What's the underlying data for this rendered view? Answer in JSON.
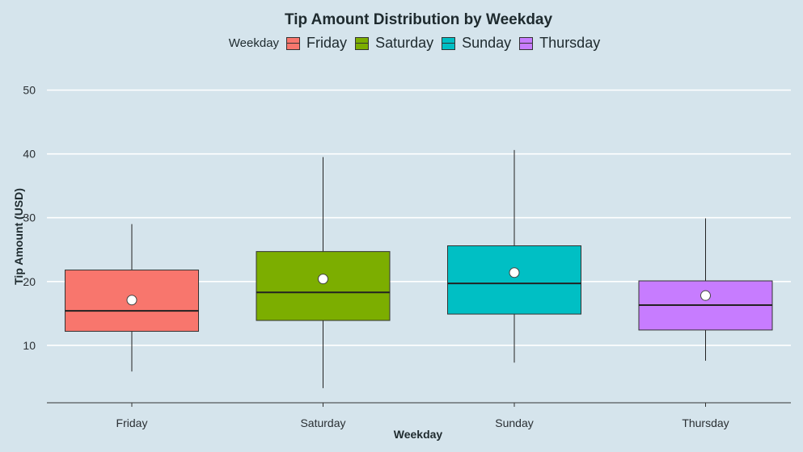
{
  "chart_data": {
    "type": "boxplot",
    "title": "Tip Amount Distribution by Weekday",
    "xlabel": "Weekday",
    "ylabel": "Tip Amount (USD)",
    "legend": {
      "title": "Weekday",
      "placement": "top",
      "entries": [
        "Friday",
        "Saturday",
        "Sunday",
        "Thursday"
      ]
    },
    "categories": [
      "Friday",
      "Saturday",
      "Sunday",
      "Thursday"
    ],
    "colors": [
      "#f8766d",
      "#7cae00",
      "#00bfc4",
      "#c77cff"
    ],
    "ylim": [
      1,
      54
    ],
    "yticks": [
      10,
      20,
      30,
      40,
      50
    ],
    "grid": true,
    "boxes": [
      {
        "category": "Friday",
        "whisker_low": 5.9,
        "q1": 12.2,
        "median": 15.4,
        "q3": 21.8,
        "whisker_high": 29.0,
        "mean": 17.1
      },
      {
        "category": "Saturday",
        "whisker_low": 3.3,
        "q1": 13.9,
        "median": 18.3,
        "q3": 24.7,
        "whisker_high": 39.5,
        "mean": 20.4
      },
      {
        "category": "Sunday",
        "whisker_low": 7.3,
        "q1": 14.9,
        "median": 19.7,
        "q3": 25.6,
        "whisker_high": 40.6,
        "mean": 21.4
      },
      {
        "category": "Thursday",
        "whisker_low": 7.6,
        "q1": 12.4,
        "median": 16.3,
        "q3": 20.1,
        "whisker_high": 29.9,
        "mean": 17.8
      }
    ]
  }
}
